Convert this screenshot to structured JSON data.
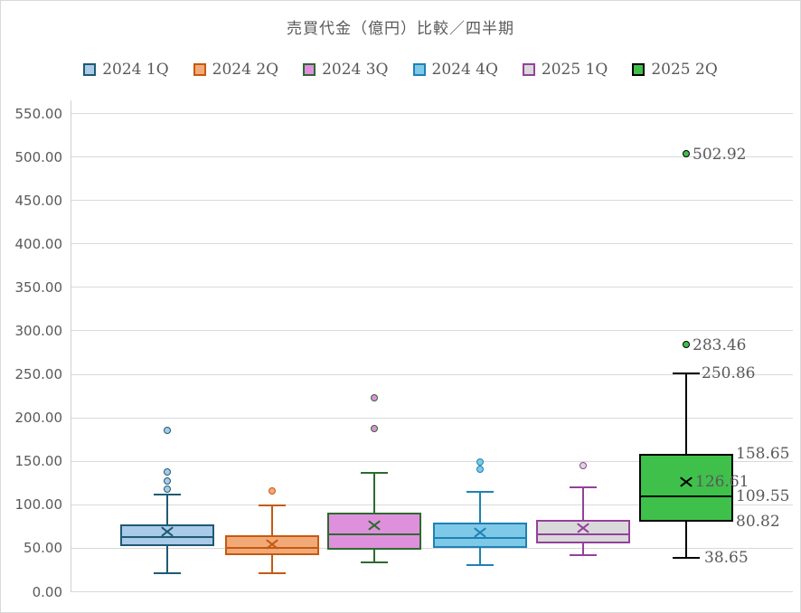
{
  "title": "売買代金（億円）比較／四半期",
  "axis": {
    "tick_labels": [
      "0.00",
      "50.00",
      "100.00",
      "150.00",
      "200.00",
      "250.00",
      "300.00",
      "350.00",
      "400.00",
      "450.00",
      "500.00",
      "550.00"
    ],
    "tick_step": 50
  },
  "colors": {
    "grid": "#d9d9d9",
    "text": "#595959",
    "background": "#ffffff"
  },
  "chart_data": {
    "type": "boxplot",
    "title": "売買代金（億円）比較／四半期",
    "xlabel": "",
    "ylabel": "",
    "ylim": [
      0,
      550
    ],
    "grid": true,
    "legend_position": "top",
    "series": [
      {
        "name": "2024 1Q",
        "fill": "#a9cae8",
        "line": "#1f5a73",
        "min": 21,
        "q1": 52.5,
        "median": 63,
        "q3": 77.5,
        "max": 112,
        "mean": 69,
        "outliers": [
          118,
          127,
          137,
          185
        ],
        "labels": []
      },
      {
        "name": "2024 2Q",
        "fill": "#f2a978",
        "line": "#c65911",
        "min": 21.5,
        "q1": 42,
        "median": 50.5,
        "q3": 65,
        "max": 99,
        "mean": 55,
        "outliers": [
          115
        ],
        "labels": []
      },
      {
        "name": "2024 3Q",
        "fill": "#df90dc",
        "line": "#2d6a30",
        "min": 34,
        "q1": 48.5,
        "median": 66,
        "q3": 91,
        "max": 137,
        "mean": 76.5,
        "outliers": [
          187,
          222
        ],
        "labels": []
      },
      {
        "name": "2024 4Q",
        "fill": "#7fc9e8",
        "line": "#1d82b5",
        "min": 31,
        "q1": 50.5,
        "median": 62,
        "q3": 79.5,
        "max": 115,
        "mean": 68,
        "outliers": [
          140,
          149
        ],
        "labels": []
      },
      {
        "name": "2025 1Q",
        "fill": "#d9d9d9",
        "line": "#93419b",
        "min": 42,
        "q1": 55.5,
        "median": 66,
        "q3": 83,
        "max": 120,
        "mean": 73,
        "outliers": [
          145
        ],
        "labels": []
      },
      {
        "name": "2025 2Q",
        "fill": "#3fc04b",
        "line": "#000000",
        "min": 38.65,
        "q1": 80.82,
        "median": 109.55,
        "q3": 158.65,
        "max": 250.86,
        "mean": 126.61,
        "outliers": [
          283.46,
          502.92
        ],
        "labels": [
          {
            "text": "502.92",
            "value": 502.92,
            "x": 765
          },
          {
            "text": "283.46",
            "value": 283.46,
            "x": 765
          },
          {
            "text": "250.86",
            "value": 250.86,
            "x": 775
          },
          {
            "text": "158.65",
            "value": 158.65,
            "x": 813
          },
          {
            "text": "126.61",
            "value": 126.61,
            "x": 768
          },
          {
            "text": "109.55",
            "value": 109.55,
            "x": 813
          },
          {
            "text": "80.82",
            "value": 80.82,
            "x": 813
          },
          {
            "text": "38.65",
            "value": 38.65,
            "x": 778
          }
        ]
      }
    ]
  }
}
